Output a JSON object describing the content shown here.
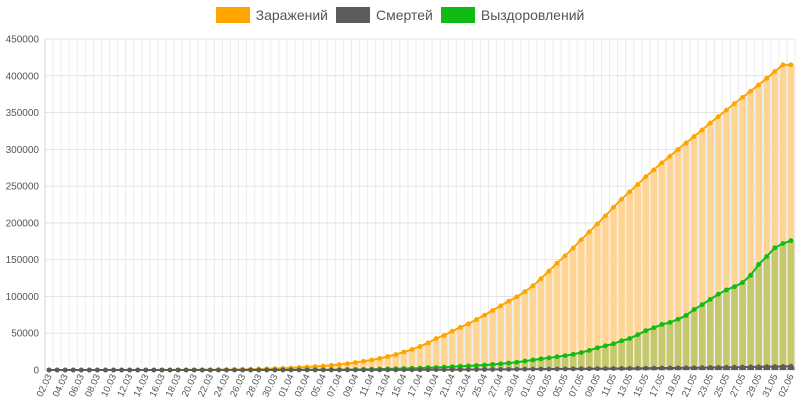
{
  "chart_data": {
    "type": "bar+line",
    "title": "",
    "xlabel": "",
    "ylabel": "",
    "ylim": [
      0,
      450000
    ],
    "yticks": [
      0,
      50000,
      100000,
      150000,
      200000,
      250000,
      300000,
      350000,
      400000,
      450000
    ],
    "grid": true,
    "legend_position": "top",
    "x_label_step": 2,
    "x": [
      "02.03",
      "03.03",
      "04.03",
      "05.03",
      "06.03",
      "07.03",
      "08.03",
      "09.03",
      "10.03",
      "11.03",
      "12.03",
      "13.03",
      "14.03",
      "15.03",
      "16.03",
      "17.03",
      "18.03",
      "19.03",
      "20.03",
      "21.03",
      "22.03",
      "23.03",
      "24.03",
      "25.03",
      "26.03",
      "27.03",
      "28.03",
      "29.03",
      "30.03",
      "31.03",
      "01.04",
      "02.04",
      "03.04",
      "04.04",
      "05.04",
      "06.04",
      "07.04",
      "08.04",
      "09.04",
      "10.04",
      "11.04",
      "12.04",
      "13.04",
      "14.04",
      "15.04",
      "16.04",
      "17.04",
      "18.04",
      "19.04",
      "20.04",
      "21.04",
      "22.04",
      "23.04",
      "24.04",
      "25.04",
      "26.04",
      "27.04",
      "28.04",
      "29.04",
      "30.04",
      "01.05",
      "02.05",
      "03.05",
      "04.05",
      "05.05",
      "06.05",
      "07.05",
      "08.05",
      "09.05",
      "10.05",
      "11.05",
      "12.05",
      "13.05",
      "14.05",
      "15.05",
      "16.05",
      "17.05",
      "18.05",
      "19.05",
      "20.05",
      "21.05",
      "22.05",
      "23.05",
      "24.05",
      "25.05",
      "26.05",
      "27.05",
      "28.05",
      "29.05",
      "30.05",
      "31.05",
      "01.06",
      "02.06"
    ],
    "series": [
      {
        "name": "Заражений",
        "color": "#ffa500",
        "fill": "#ffd595",
        "values": [
          3,
          3,
          3,
          3,
          4,
          10,
          13,
          17,
          20,
          28,
          34,
          45,
          59,
          63,
          90,
          114,
          147,
          199,
          253,
          306,
          367,
          438,
          495,
          658,
          840,
          1036,
          1264,
          1534,
          1836,
          2337,
          2777,
          3548,
          4149,
          4731,
          5389,
          6343,
          7497,
          8672,
          10131,
          11917,
          13584,
          15770,
          18328,
          21102,
          24490,
          27938,
          32008,
          36793,
          42853,
          47121,
          52763,
          57999,
          62773,
          68622,
          74588,
          80949,
          87147,
          93558,
          99399,
          106498,
          114431,
          124054,
          134687,
          145268,
          155370,
          165929,
          177160,
          187859,
          198676,
          209688,
          221344,
          232243,
          242271,
          252245,
          262843,
          272043,
          281752,
          290678,
          299941,
          308705,
          317554,
          326448,
          335882,
          344481,
          353427,
          362342,
          370680,
          379051,
          387623,
          396575,
          405843,
          414878,
          414878
        ]
      },
      {
        "name": "Смертей",
        "color": "#5f5b5b",
        "fill": "#5f5b5b",
        "values": [
          0,
          0,
          0,
          0,
          0,
          0,
          0,
          0,
          0,
          0,
          0,
          0,
          0,
          0,
          0,
          0,
          0,
          1,
          1,
          1,
          1,
          1,
          1,
          3,
          3,
          4,
          4,
          8,
          9,
          17,
          24,
          30,
          34,
          43,
          45,
          47,
          58,
          63,
          76,
          94,
          106,
          130,
          148,
          170,
          198,
          232,
          273,
          313,
          361,
          405,
          456,
          513,
          555,
          615,
          681,
          747,
          794,
          867,
          972,
          1073,
          1169,
          1222,
          1280,
          1356,
          1451,
          1537,
          1625,
          1723,
          1827,
          1915,
          2009,
          2116,
          2212,
          2305,
          2418,
          2537,
          2631,
          2722,
          2837,
          2972,
          3099,
          3249,
          3388,
          3541,
          3633,
          3807,
          3968,
          4142,
          4374,
          4555,
          4693,
          4849,
          5037
        ]
      },
      {
        "name": "Выздоровлений",
        "color": "#11bb11",
        "fill": "#c5c86d",
        "values": [
          0,
          0,
          0,
          0,
          0,
          0,
          0,
          0,
          0,
          0,
          0,
          0,
          0,
          0,
          0,
          0,
          0,
          0,
          0,
          0,
          0,
          0,
          16,
          22,
          38,
          49,
          66,
          79,
          121,
          150,
          190,
          222,
          281,
          311,
          355,
          406,
          494,
          580,
          698,
          794,
          1045,
          1291,
          1470,
          1694,
          1986,
          2304,
          2590,
          3290,
          3446,
          3873,
          4420,
          5176,
          5567,
          6134,
          6740,
          7550,
          8440,
          9445,
          10578,
          12143,
          13634,
          15129,
          16558,
          18094,
          19516,
          21327,
          23777,
          26679,
          30190,
          32907,
          35667,
          39766,
          42813,
          48025,
          53530,
          57486,
          61934,
          64729,
          69017,
          74260,
          82314,
          88905,
          96041,
          103075,
          108921,
          113265,
          118919,
          128802,
          143625,
          154325,
          166133,
          171938,
          175877
        ]
      }
    ]
  }
}
